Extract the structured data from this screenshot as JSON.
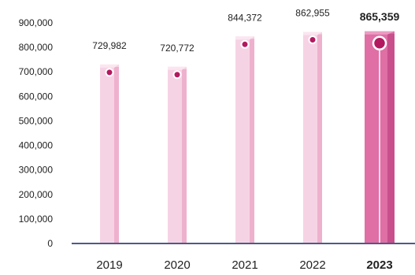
{
  "chart_data": {
    "type": "bar",
    "categories": [
      "2019",
      "2020",
      "2021",
      "2022",
      "2023"
    ],
    "values": [
      729982,
      720772,
      844372,
      862955,
      865359
    ],
    "value_labels": [
      "729,982",
      "720,772",
      "844,372",
      "862,955",
      "865,359"
    ],
    "highlight_index": 4,
    "ylim": [
      0,
      900000
    ],
    "yticks": [
      0,
      100000,
      200000,
      300000,
      400000,
      500000,
      600000,
      700000,
      800000,
      900000
    ],
    "ytick_labels": [
      "0",
      "100,000",
      "200,000",
      "300,000",
      "400,000",
      "500,000",
      "600,000",
      "700,000",
      "800,000",
      "900,000"
    ],
    "grid": false,
    "xlabel": "",
    "ylabel": "",
    "title": ""
  },
  "colors": {
    "bar_light": "#f6d3e4",
    "bar_light_side": "#eeb1cd",
    "bar_light_top": "#fbe6f0",
    "bar_highlight": "#df6fa5",
    "bar_highlight_side": "#c94f8c",
    "bar_highlight_top": "#ec9cc2",
    "marker": "#b3195f",
    "highlight_text": "#c0175e",
    "text": "#222222",
    "baseline": "#4e5a8a"
  }
}
